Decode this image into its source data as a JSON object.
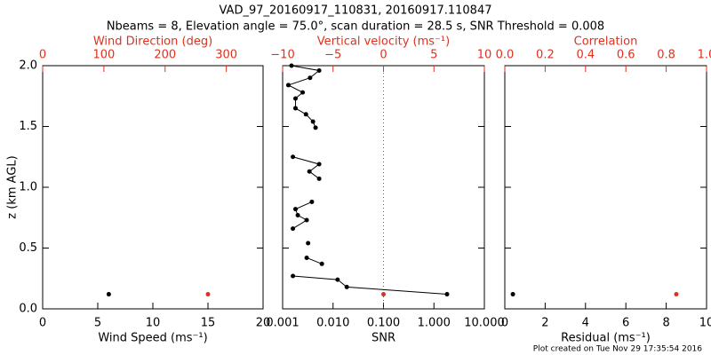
{
  "title": "VAD_97_20160917_110831, 20160917.110847",
  "subtitle": "Nbeams = 8, Elevation angle = 75.0°, scan duration = 28.5 s, SNR Threshold = 0.008",
  "footer": "Plot created on Tue Nov 29 17:35:54 2016",
  "chart_data": [
    {
      "type": "scatter",
      "xlabel": "Wind Speed (ms⁻¹)",
      "x2label": "Wind Direction (deg)",
      "ylabel": "z (km AGL)",
      "xlim": [
        0,
        20
      ],
      "xticks": [
        0,
        5,
        10,
        15,
        20
      ],
      "x2lim": [
        0,
        360
      ],
      "x2ticks": [
        0,
        100,
        200,
        300
      ],
      "ylim": [
        0,
        2.0
      ],
      "yticks": [
        {
          "value": 0,
          "label": "0.0"
        },
        {
          "value": 0.5,
          "label": "0.5"
        },
        {
          "value": 1,
          "label": "1.0"
        },
        {
          "value": 1.5,
          "label": "1.5"
        },
        {
          "value": 2,
          "label": "2.0"
        }
      ],
      "ytick_labels": true,
      "series": [
        {
          "color": "#000000",
          "x": [
            6
          ],
          "y": [
            0.12
          ]
        },
        {
          "color": "#e0301e",
          "axis": "x2",
          "x": [
            270
          ],
          "y": [
            0.12
          ]
        }
      ]
    },
    {
      "type": "line",
      "xlabel": "SNR",
      "x2label": "Vertical velocity (ms⁻¹)",
      "xscale": "log",
      "xlim": [
        0.001,
        10
      ],
      "xticks": [
        0.001,
        {
          "value": 0.01,
          "label": "0.010"
        },
        {
          "value": 0.1,
          "label": "0.100"
        },
        {
          "value": 1,
          "label": "1.000"
        },
        {
          "value": 10,
          "label": "10.000"
        }
      ],
      "x2lim": [
        -10,
        10
      ],
      "x2ticks": [
        {
          "value": -10,
          "label": "−10"
        },
        {
          "value": -5,
          "label": "−5"
        },
        0,
        5,
        10
      ],
      "x2refline": 0,
      "ylim": [
        0,
        2.0
      ],
      "yticks": [
        0,
        0.5,
        1,
        1.5,
        2
      ],
      "ytick_labels": false,
      "series": [
        {
          "color": "#000000",
          "x": [
            1.82,
            0.0187,
            0.0123,
            0.0016,
            null,
            0.006,
            0.003,
            null,
            0.0032,
            null,
            0.0016,
            0.003,
            0.002,
            0.0018,
            0.0038,
            null,
            0.0053,
            0.0034,
            0.0053,
            0.0016,
            null,
            0.0045,
            0.004,
            0.0029,
            0.0018,
            0.0018,
            0.0025,
            0.0013,
            0.0035,
            0.0053,
            0.0015
          ],
          "y": [
            0.12,
            0.18,
            0.24,
            0.27,
            null,
            0.37,
            0.42,
            null,
            0.54,
            null,
            0.66,
            0.73,
            0.77,
            0.82,
            0.88,
            null,
            1.07,
            1.13,
            1.19,
            1.25,
            null,
            1.49,
            1.54,
            1.6,
            1.65,
            1.73,
            1.78,
            1.84,
            1.9,
            1.96,
            2.0
          ]
        },
        {
          "color": "#e0301e",
          "axis": "x2",
          "x": [
            0
          ],
          "y": [
            0.12
          ]
        }
      ]
    },
    {
      "type": "scatter",
      "xlabel": "Residual (ms⁻¹)",
      "x2label": "Correlation",
      "xlim": [
        0,
        10
      ],
      "xticks": [
        0,
        2,
        4,
        6,
        8,
        10
      ],
      "x2lim": [
        0,
        1
      ],
      "x2ticks": [
        {
          "value": 0,
          "label": "0.0"
        },
        0.2,
        0.4,
        0.6,
        0.8,
        {
          "value": 1,
          "label": "1.0"
        }
      ],
      "ylim": [
        0,
        2.0
      ],
      "yticks": [
        0,
        0.5,
        1,
        1.5,
        2
      ],
      "ytick_labels": false,
      "series": [
        {
          "color": "#000000",
          "x": [
            0.4
          ],
          "y": [
            0.12
          ]
        },
        {
          "color": "#e0301e",
          "axis": "x2",
          "x": [
            0.85
          ],
          "y": [
            0.12
          ]
        }
      ]
    }
  ]
}
